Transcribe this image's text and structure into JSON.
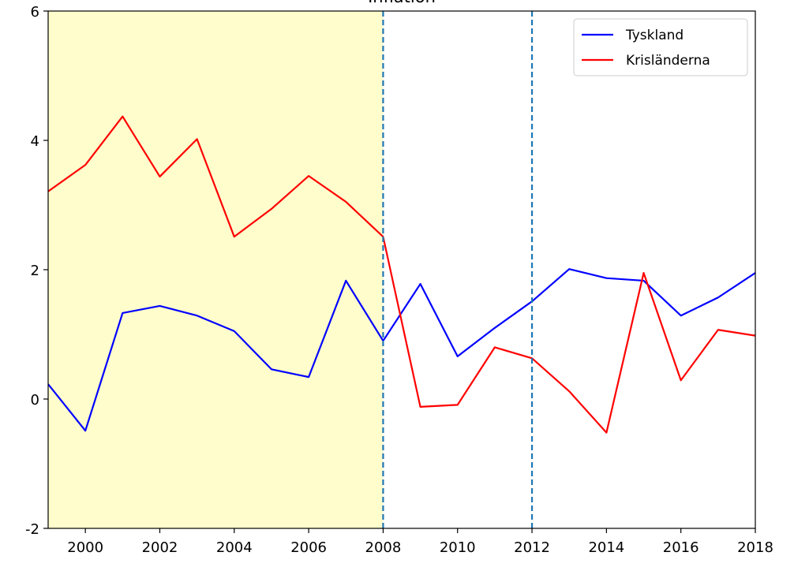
{
  "chart_data": {
    "type": "line",
    "title": "Inflation",
    "x": [
      1999,
      2000,
      2001,
      2002,
      2003,
      2004,
      2005,
      2006,
      2007,
      2008,
      2009,
      2010,
      2011,
      2012,
      2013,
      2014,
      2015,
      2016,
      2017,
      2018
    ],
    "series": [
      {
        "name": "Tyskland",
        "color": "#0000ff",
        "values": [
          0.23,
          -0.49,
          1.33,
          1.44,
          1.29,
          1.05,
          0.46,
          0.34,
          1.83,
          0.9,
          1.78,
          0.66,
          1.1,
          1.51,
          2.01,
          1.87,
          1.83,
          1.29,
          1.57,
          1.95
        ]
      },
      {
        "name": "Krisländerna",
        "color": "#ff0000",
        "values": [
          3.21,
          3.62,
          4.37,
          3.44,
          4.02,
          2.51,
          2.94,
          3.45,
          3.05,
          2.51,
          -0.12,
          -0.09,
          0.8,
          0.63,
          0.12,
          -0.52,
          1.95,
          0.29,
          1.07,
          0.98
        ]
      }
    ],
    "xlim": [
      1999,
      2018
    ],
    "xticks": [
      2000,
      2002,
      2004,
      2006,
      2008,
      2010,
      2012,
      2014,
      2016,
      2018
    ],
    "ylim": [
      -2,
      6
    ],
    "yticks": [
      -2,
      0,
      2,
      4,
      6
    ],
    "shaded_span": [
      1999,
      2008
    ],
    "shaded_color": "#fffdcc",
    "vlines": [
      2008,
      2012
    ],
    "vline_color": "#1f77b4",
    "legend": "upper right",
    "grid": false
  }
}
